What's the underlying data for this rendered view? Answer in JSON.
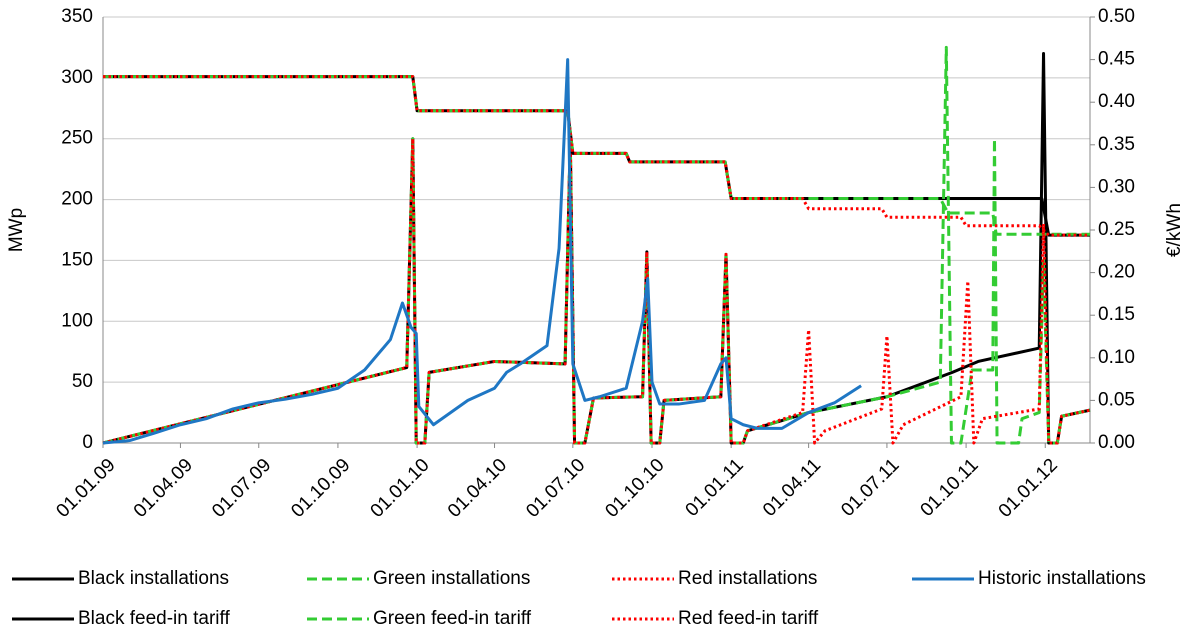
{
  "chart_data": {
    "type": "line",
    "y_label": "MWp",
    "y2_label": "€/kWh",
    "xlim": [
      "01.01.09",
      "22.02.12"
    ],
    "xticks": [
      "01.01.09",
      "01.04.09",
      "01.07.09",
      "01.10.09",
      "01.01.10",
      "01.04.10",
      "01.07.10",
      "01.10.10",
      "01.01.11",
      "01.04.11",
      "01.07.11",
      "01.10.11",
      "01.01.12"
    ],
    "ylim": [
      0,
      350
    ],
    "yticks": [
      0,
      50,
      100,
      150,
      200,
      250,
      300,
      350
    ],
    "y2lim": [
      0,
      0.5
    ],
    "y2ticks": [
      {
        "value": 0,
        "label": "0.00"
      },
      {
        "value": 0.05,
        "label": "0.05"
      },
      {
        "value": 0.1,
        "label": "0.10"
      },
      {
        "value": 0.15,
        "label": "0.15"
      },
      {
        "value": 0.2,
        "label": "0.20"
      },
      {
        "value": 0.25,
        "label": "0.25"
      },
      {
        "value": 0.3,
        "label": "0.30"
      },
      {
        "value": 0.35,
        "label": "0.35"
      },
      {
        "value": 0.4,
        "label": "0.40"
      },
      {
        "value": 0.45,
        "label": "0.45"
      },
      {
        "value": 0.5,
        "label": "0.50"
      }
    ],
    "grid": true,
    "legend": "bottom",
    "series": [
      {
        "name": "Black installations",
        "color": "#000000",
        "dash": "solid",
        "axis": "y",
        "x": [
          "01.01.09",
          "20.12.09",
          "27.12.09",
          "31.12.09",
          "10.01.10",
          "15.01.10",
          "01.04.10",
          "22.06.10",
          "28.06.10",
          "03.07.10",
          "15.07.10",
          "25.07.10",
          "20.09.10",
          "25.09.10",
          "30.09.10",
          "10.10.10",
          "15.10.10",
          "20.12.10",
          "26.12.10",
          "01.01.11",
          "15.01.11",
          "20.01.11",
          "01.04.11",
          "01.07.11",
          "15.09.11",
          "15.10.11",
          "25.12.11",
          "30.12.11",
          "05.01.12",
          "15.01.12",
          "20.01.12",
          "22.02.12"
        ],
        "values": [
          0,
          62,
          250,
          0,
          0,
          58,
          67,
          65,
          250,
          0,
          0,
          37,
          38,
          157,
          0,
          0,
          35,
          38,
          155,
          0,
          0,
          10,
          25,
          38,
          58,
          67,
          78,
          320,
          0,
          0,
          22,
          27
        ]
      },
      {
        "name": "Green installations",
        "color": "#33cc33",
        "dash": "dashed",
        "axis": "y",
        "x": [
          "01.01.09",
          "20.12.09",
          "27.12.09",
          "31.12.09",
          "10.01.10",
          "15.01.10",
          "01.04.10",
          "22.06.10",
          "28.06.10",
          "03.07.10",
          "15.07.10",
          "25.07.10",
          "20.09.10",
          "25.09.10",
          "30.09.10",
          "10.10.10",
          "15.10.10",
          "20.12.10",
          "26.12.10",
          "01.01.11",
          "15.01.11",
          "20.01.11",
          "01.04.11",
          "01.07.11",
          "01.09.11",
          "08.09.11",
          "14.09.11",
          "25.09.11",
          "08.10.11",
          "01.11.11",
          "03.11.11",
          "06.11.11",
          "01.12.11",
          "05.12.11",
          "25.12.11",
          "30.12.11",
          "05.01.12",
          "15.01.12",
          "20.01.12",
          "22.02.12"
        ],
        "values": [
          0,
          62,
          250,
          0,
          0,
          58,
          67,
          65,
          250,
          0,
          0,
          37,
          38,
          157,
          0,
          0,
          35,
          38,
          155,
          0,
          0,
          10,
          25,
          38,
          50,
          325,
          0,
          0,
          60,
          60,
          250,
          0,
          0,
          20,
          25,
          150,
          0,
          0,
          22,
          27
        ]
      },
      {
        "name": "Red installations",
        "color": "#ff0000",
        "dash": "dotted",
        "axis": "y",
        "x": [
          "01.01.09",
          "20.12.09",
          "27.12.09",
          "31.12.09",
          "10.01.10",
          "15.01.10",
          "01.04.10",
          "22.06.10",
          "28.06.10",
          "03.07.10",
          "15.07.10",
          "25.07.10",
          "20.09.10",
          "25.09.10",
          "30.09.10",
          "10.10.10",
          "15.10.10",
          "20.12.10",
          "26.12.10",
          "01.01.11",
          "15.01.11",
          "20.01.11",
          "25.03.11",
          "01.04.11",
          "08.04.11",
          "20.04.11",
          "25.06.11",
          "01.07.11",
          "08.07.11",
          "20.07.11",
          "25.09.11",
          "03.10.11",
          "10.10.11",
          "20.10.11",
          "25.12.11",
          "30.12.11",
          "05.01.12",
          "15.01.12",
          "20.01.12",
          "22.02.12"
        ],
        "values": [
          0,
          62,
          250,
          0,
          0,
          58,
          67,
          65,
          250,
          0,
          0,
          37,
          38,
          157,
          0,
          0,
          35,
          38,
          155,
          0,
          0,
          10,
          25,
          93,
          0,
          10,
          28,
          88,
          0,
          15,
          38,
          133,
          0,
          20,
          28,
          180,
          0,
          0,
          22,
          27
        ]
      },
      {
        "name": "Historic installations",
        "color": "#1f77c4",
        "dash": "solid",
        "axis": "y",
        "x": [
          "01.01.09",
          "01.02.09",
          "01.03.09",
          "01.04.09",
          "01.05.09",
          "01.06.09",
          "01.07.09",
          "01.08.09",
          "01.09.09",
          "01.10.09",
          "01.11.09",
          "01.12.09",
          "15.12.09",
          "25.12.09",
          "31.12.09",
          "03.01.10",
          "20.01.10",
          "01.03.10",
          "01.04.10",
          "15.04.10",
          "01.05.10",
          "01.06.10",
          "15.06.10",
          "25.06.10",
          "01.07.10",
          "15.07.10",
          "01.08.10",
          "01.09.10",
          "20.09.10",
          "26.09.10",
          "01.10.10",
          "10.10.10",
          "01.11.10",
          "01.12.10",
          "20.12.10",
          "26.12.10",
          "01.01.11",
          "15.01.11",
          "01.02.11",
          "01.03.11",
          "01.04.11",
          "01.05.11",
          "01.06.11"
        ],
        "values": [
          0,
          2,
          8,
          15,
          20,
          28,
          33,
          36,
          40,
          45,
          60,
          85,
          115,
          95,
          90,
          30,
          15,
          35,
          45,
          58,
          65,
          80,
          160,
          315,
          65,
          35,
          38,
          45,
          100,
          135,
          50,
          32,
          32,
          35,
          65,
          70,
          20,
          15,
          12,
          12,
          25,
          33,
          47
        ]
      },
      {
        "name": "Black feed-in tariff",
        "color": "#000000",
        "dash": "solid",
        "axis": "y2",
        "x": [
          "01.01.09",
          "27.12.09",
          "01.01.10",
          "25.06.10",
          "01.07.10",
          "01.09.10",
          "05.09.10",
          "25.12.10",
          "01.01.11",
          "28.12.11",
          "05.01.12",
          "22.02.12"
        ],
        "values": [
          0.43,
          0.43,
          0.39,
          0.39,
          0.34,
          0.34,
          0.33,
          0.33,
          0.287,
          0.287,
          0.244,
          0.244
        ]
      },
      {
        "name": "Green feed-in tariff",
        "color": "#33cc33",
        "dash": "dashed",
        "axis": "y2",
        "x": [
          "01.01.09",
          "27.12.09",
          "01.01.10",
          "25.06.10",
          "01.07.10",
          "01.09.10",
          "05.09.10",
          "25.12.10",
          "01.01.11",
          "01.09.11",
          "10.09.11",
          "01.11.11",
          "05.11.11",
          "22.02.12"
        ],
        "values": [
          0.43,
          0.43,
          0.39,
          0.39,
          0.34,
          0.34,
          0.33,
          0.33,
          0.287,
          0.287,
          0.27,
          0.27,
          0.245,
          0.245
        ]
      },
      {
        "name": "Red feed-in tariff",
        "color": "#ff0000",
        "dash": "dotted",
        "axis": "y2",
        "x": [
          "01.01.09",
          "27.12.09",
          "01.01.10",
          "25.06.10",
          "01.07.10",
          "01.09.10",
          "05.09.10",
          "25.12.10",
          "01.01.11",
          "25.03.11",
          "01.04.11",
          "25.06.11",
          "01.07.11",
          "25.09.11",
          "01.10.11",
          "25.12.11",
          "05.01.12",
          "22.02.12"
        ],
        "values": [
          0.43,
          0.43,
          0.39,
          0.39,
          0.34,
          0.34,
          0.33,
          0.33,
          0.287,
          0.287,
          0.275,
          0.275,
          0.265,
          0.265,
          0.255,
          0.255,
          0.244,
          0.244
        ]
      }
    ]
  }
}
